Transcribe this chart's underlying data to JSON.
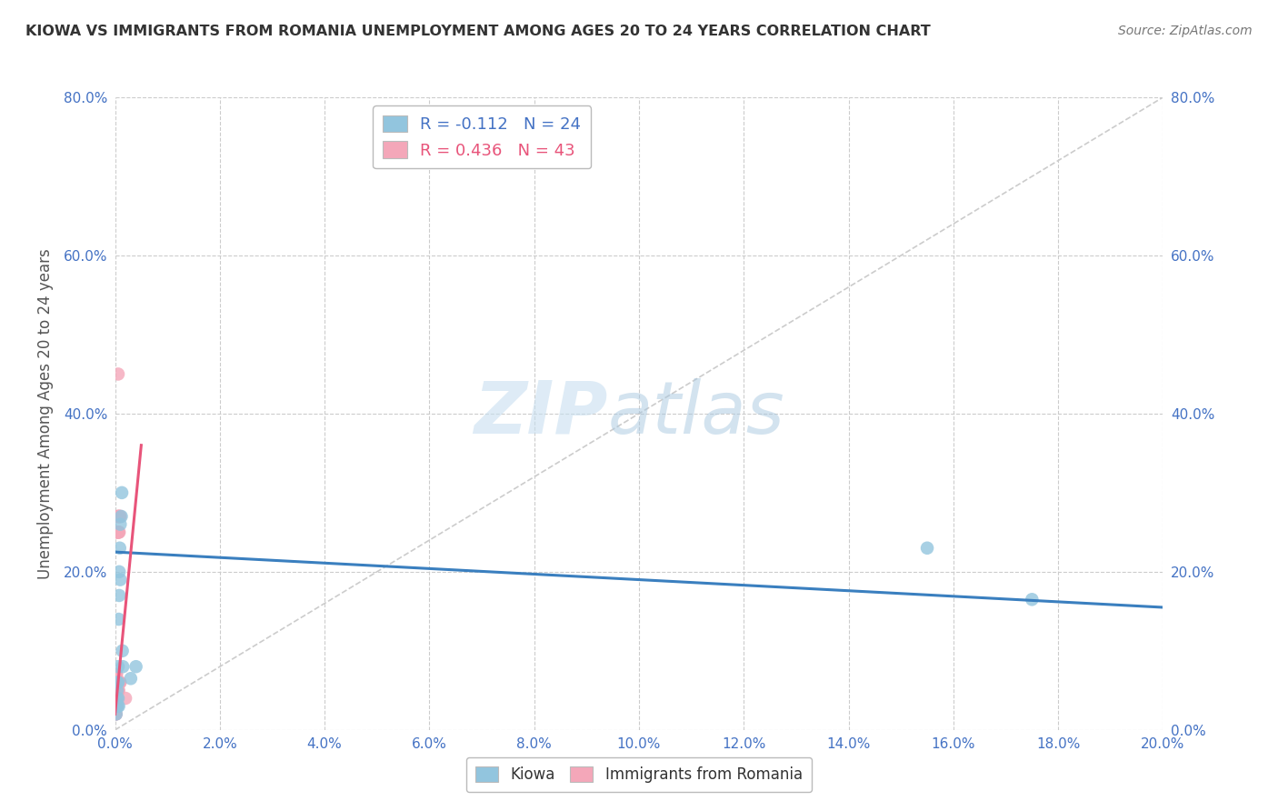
{
  "title": "KIOWA VS IMMIGRANTS FROM ROMANIA UNEMPLOYMENT AMONG AGES 20 TO 24 YEARS CORRELATION CHART",
  "source": "Source: ZipAtlas.com",
  "xlabel_ticks": [
    "0.0%",
    "2.0%",
    "4.0%",
    "6.0%",
    "8.0%",
    "10.0%",
    "12.0%",
    "14.0%",
    "16.0%",
    "18.0%",
    "20.0%"
  ],
  "ylabel_ticks_left": [
    "0.0%",
    "20.0%",
    "40.0%",
    "60.0%",
    "80.0%"
  ],
  "ylabel_ticks_right": [
    "0.0%",
    "20.0%",
    "40.0%",
    "60.0%",
    "80.0%"
  ],
  "ylabel_label": "Unemployment Among Ages 20 to 24 years",
  "xlim": [
    0.0,
    0.2
  ],
  "ylim": [
    -0.02,
    0.8
  ],
  "kiowa_R": -0.112,
  "kiowa_N": 24,
  "romania_R": 0.436,
  "romania_N": 43,
  "legend_labels": [
    "Kiowa",
    "Immigrants from Romania"
  ],
  "kiowa_color": "#92C5DE",
  "romania_color": "#F4A7B9",
  "kiowa_line_color": "#3A7FBF",
  "romania_line_color": "#E8547A",
  "diagonal_color": "#CCCCCC",
  "background_color": "#FFFFFF",
  "watermark_zip": "ZIP",
  "watermark_atlas": "atlas",
  "kiowa_x": [
    0.0002,
    0.0002,
    0.0003,
    0.0004,
    0.0005,
    0.0005,
    0.0006,
    0.0006,
    0.0006,
    0.0007,
    0.0007,
    0.0008,
    0.0008,
    0.0009,
    0.001,
    0.001,
    0.0012,
    0.0013,
    0.0014,
    0.0015,
    0.003,
    0.004,
    0.155,
    0.175
  ],
  "kiowa_y": [
    0.02,
    0.03,
    0.04,
    0.05,
    0.03,
    0.06,
    0.04,
    0.06,
    0.08,
    0.03,
    0.14,
    0.17,
    0.2,
    0.23,
    0.19,
    0.26,
    0.27,
    0.3,
    0.1,
    0.08,
    0.065,
    0.08,
    0.23,
    0.165
  ],
  "romania_x": [
    0.0001,
    0.0001,
    0.0001,
    0.0001,
    0.0001,
    0.0002,
    0.0002,
    0.0002,
    0.0002,
    0.0002,
    0.0002,
    0.0003,
    0.0003,
    0.0003,
    0.0003,
    0.0003,
    0.0004,
    0.0004,
    0.0004,
    0.0004,
    0.0004,
    0.0005,
    0.0005,
    0.0005,
    0.0005,
    0.0005,
    0.0006,
    0.0006,
    0.0006,
    0.0006,
    0.0006,
    0.0007,
    0.0007,
    0.0007,
    0.0007,
    0.0008,
    0.0008,
    0.0008,
    0.0009,
    0.0009,
    0.001,
    0.001,
    0.002
  ],
  "romania_y": [
    0.02,
    0.03,
    0.04,
    0.05,
    0.06,
    0.02,
    0.03,
    0.04,
    0.05,
    0.06,
    0.07,
    0.03,
    0.04,
    0.05,
    0.06,
    0.07,
    0.03,
    0.04,
    0.05,
    0.06,
    0.25,
    0.04,
    0.05,
    0.06,
    0.25,
    0.27,
    0.05,
    0.06,
    0.25,
    0.27,
    0.45,
    0.05,
    0.06,
    0.25,
    0.27,
    0.06,
    0.25,
    0.27,
    0.06,
    0.27,
    0.06,
    0.27,
    0.04
  ],
  "kiowa_trend_x": [
    0.0,
    0.2
  ],
  "kiowa_trend_y": [
    0.225,
    0.155
  ],
  "romania_trend_x": [
    0.0,
    0.005
  ],
  "romania_trend_y": [
    0.02,
    0.36
  ]
}
